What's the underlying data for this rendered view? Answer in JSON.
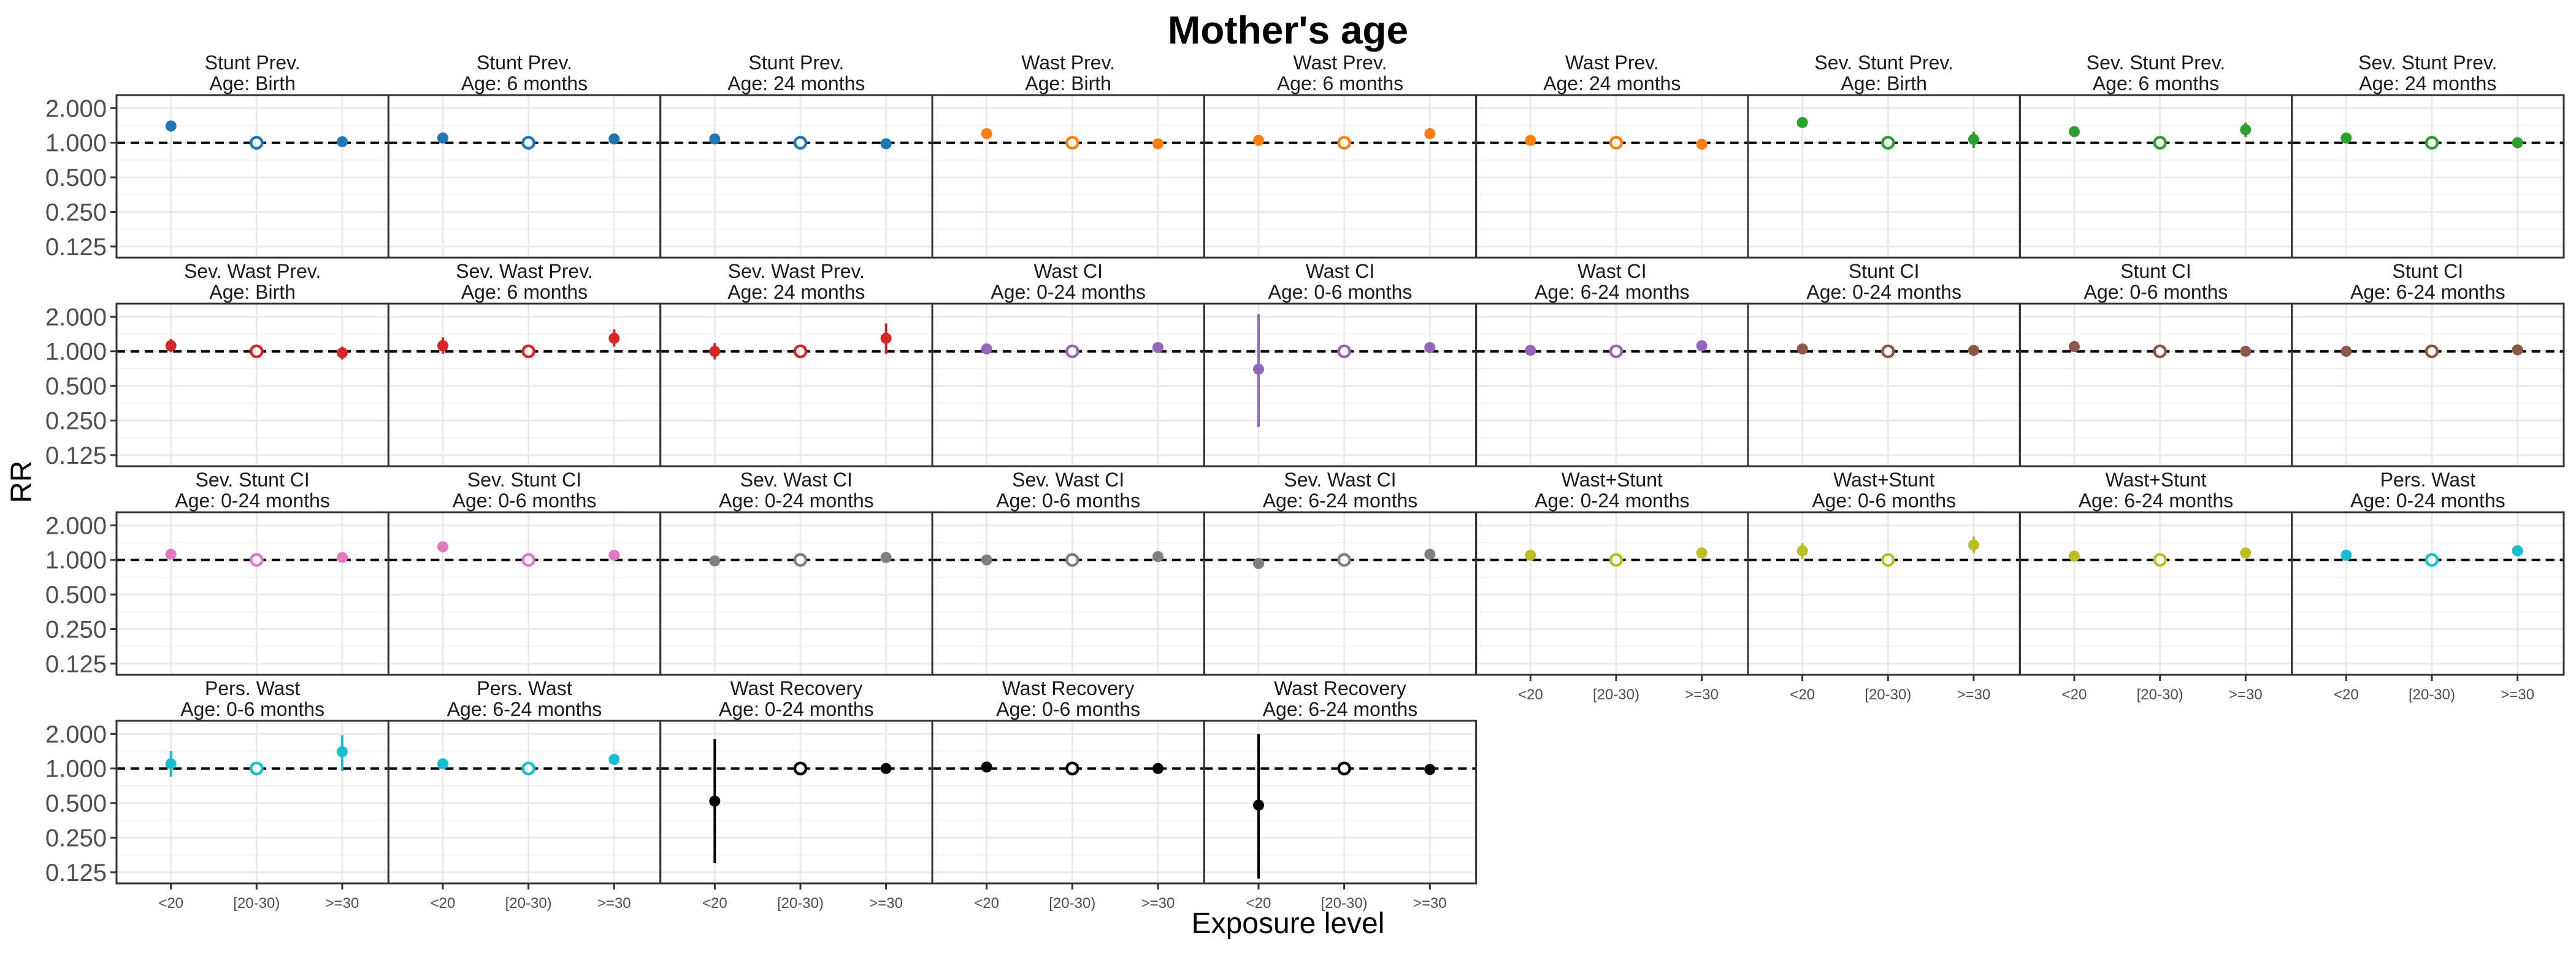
{
  "chart_data": {
    "type": "scatter",
    "title": "Mother's age",
    "xlabel": "Exposure level",
    "ylabel": "RR",
    "y_scale": "log2",
    "ylim": [
      0.1,
      2.6
    ],
    "yticks": [
      "2.000",
      "1.000",
      "0.500",
      "0.250",
      "0.125"
    ],
    "ytick_values": [
      2,
      1,
      0.5,
      0.25,
      0.125
    ],
    "categories": [
      "<20",
      "[20-30)",
      ">=30"
    ],
    "reference_level": "[20-30)",
    "reference_line": 1,
    "grid": true,
    "legend": "none",
    "panels": [
      {
        "title": [
          "Stunt Prev.",
          "Age: Birth"
        ],
        "color": "#1f77b4",
        "rr": [
          1.4,
          1,
          1.02
        ],
        "lo": [
          1.25,
          1,
          0.95
        ],
        "hi": [
          1.55,
          1,
          1.09
        ]
      },
      {
        "title": [
          "Stunt Prev.",
          "Age: 6 months"
        ],
        "color": "#1f77b4",
        "rr": [
          1.1,
          1,
          1.08
        ],
        "lo": [
          1.02,
          1,
          1.0
        ],
        "hi": [
          1.18,
          1,
          1.16
        ]
      },
      {
        "title": [
          "Stunt Prev.",
          "Age: 24 months"
        ],
        "color": "#1f77b4",
        "rr": [
          1.08,
          1,
          0.98
        ],
        "lo": [
          1.0,
          1,
          0.92
        ],
        "hi": [
          1.16,
          1,
          1.04
        ]
      },
      {
        "title": [
          "Wast Prev.",
          "Age: Birth"
        ],
        "color": "#ff7f0e",
        "rr": [
          1.2,
          1,
          0.98
        ],
        "lo": [
          1.1,
          1,
          0.9
        ],
        "hi": [
          1.3,
          1,
          1.06
        ]
      },
      {
        "title": [
          "Wast Prev.",
          "Age: 6 months"
        ],
        "color": "#ff7f0e",
        "rr": [
          1.05,
          1,
          1.2
        ],
        "lo": [
          0.95,
          1,
          1.1
        ],
        "hi": [
          1.15,
          1,
          1.3
        ]
      },
      {
        "title": [
          "Wast Prev.",
          "Age: 24 months"
        ],
        "color": "#ff7f0e",
        "rr": [
          1.05,
          1,
          0.97
        ],
        "lo": [
          0.95,
          1,
          0.88
        ],
        "hi": [
          1.15,
          1,
          1.08
        ]
      },
      {
        "title": [
          "Sev. Stunt Prev.",
          "Age: Birth"
        ],
        "color": "#2ca02c",
        "rr": [
          1.5,
          1,
          1.07
        ],
        "lo": [
          1.38,
          1,
          0.9
        ],
        "hi": [
          1.62,
          1,
          1.25
        ]
      },
      {
        "title": [
          "Sev. Stunt Prev.",
          "Age: 6 months"
        ],
        "color": "#2ca02c",
        "rr": [
          1.25,
          1,
          1.3
        ],
        "lo": [
          1.15,
          1,
          1.12
        ],
        "hi": [
          1.35,
          1,
          1.5
        ]
      },
      {
        "title": [
          "Sev. Stunt Prev.",
          "Age: 24 months"
        ],
        "color": "#2ca02c",
        "rr": [
          1.1,
          1,
          1.0
        ],
        "lo": [
          1.02,
          1,
          0.93
        ],
        "hi": [
          1.18,
          1,
          1.08
        ]
      },
      {
        "title": [
          "Sev. Wast Prev.",
          "Age: Birth"
        ],
        "color": "#d62728",
        "rr": [
          1.12,
          1,
          0.97
        ],
        "lo": [
          0.98,
          1,
          0.85
        ],
        "hi": [
          1.28,
          1,
          1.1
        ]
      },
      {
        "title": [
          "Sev. Wast Prev.",
          "Age: 6 months"
        ],
        "color": "#d62728",
        "rr": [
          1.12,
          1,
          1.3
        ],
        "lo": [
          0.95,
          1,
          1.1
        ],
        "hi": [
          1.32,
          1,
          1.55
        ]
      },
      {
        "title": [
          "Sev. Wast Prev.",
          "Age: 24 months"
        ],
        "color": "#d62728",
        "rr": [
          1.0,
          1,
          1.3
        ],
        "lo": [
          0.85,
          1,
          0.95
        ],
        "hi": [
          1.18,
          1,
          1.75
        ]
      },
      {
        "title": [
          "Wast CI",
          "Age: 0-24 months"
        ],
        "color": "#9467bd",
        "rr": [
          1.05,
          1,
          1.08
        ],
        "lo": [
          0.98,
          1,
          1.0
        ],
        "hi": [
          1.12,
          1,
          1.16
        ]
      },
      {
        "title": [
          "Wast CI",
          "Age: 0-6 months"
        ],
        "color": "#9467bd",
        "rr": [
          0.7,
          1,
          1.08
        ],
        "lo": [
          0.22,
          1,
          1.0
        ],
        "hi": [
          2.1,
          1,
          1.16
        ]
      },
      {
        "title": [
          "Wast CI",
          "Age: 6-24 months"
        ],
        "color": "#9467bd",
        "rr": [
          1.02,
          1,
          1.12
        ],
        "lo": [
          0.95,
          1,
          1.04
        ],
        "hi": [
          1.1,
          1,
          1.2
        ]
      },
      {
        "title": [
          "Stunt CI",
          "Age: 0-24 months"
        ],
        "color": "#8c564b",
        "rr": [
          1.05,
          1,
          1.02
        ],
        "lo": [
          0.98,
          1,
          0.96
        ],
        "hi": [
          1.12,
          1,
          1.08
        ]
      },
      {
        "title": [
          "Stunt CI",
          "Age: 0-6 months"
        ],
        "color": "#8c564b",
        "rr": [
          1.1,
          1,
          1.0
        ],
        "lo": [
          1.02,
          1,
          0.94
        ],
        "hi": [
          1.18,
          1,
          1.06
        ]
      },
      {
        "title": [
          "Stunt CI",
          "Age: 6-24 months"
        ],
        "color": "#8c564b",
        "rr": [
          1.0,
          1,
          1.03
        ],
        "lo": [
          0.94,
          1,
          0.97
        ],
        "hi": [
          1.06,
          1,
          1.09
        ]
      },
      {
        "title": [
          "Sev. Stunt CI",
          "Age: 0-24 months"
        ],
        "color": "#e377c2",
        "rr": [
          1.12,
          1,
          1.05
        ],
        "lo": [
          1.04,
          1,
          0.97
        ],
        "hi": [
          1.2,
          1,
          1.13
        ]
      },
      {
        "title": [
          "Sev. Stunt CI",
          "Age: 0-6 months"
        ],
        "color": "#e377c2",
        "rr": [
          1.3,
          1,
          1.1
        ],
        "lo": [
          1.18,
          1,
          1.0
        ],
        "hi": [
          1.42,
          1,
          1.2
        ]
      },
      {
        "title": [
          "Sev. Wast CI",
          "Age: 0-24 months"
        ],
        "color": "#7f7f7f",
        "rr": [
          0.98,
          1,
          1.05
        ],
        "lo": [
          0.92,
          1,
          0.98
        ],
        "hi": [
          1.04,
          1,
          1.12
        ]
      },
      {
        "title": [
          "Sev. Wast CI",
          "Age: 0-6 months"
        ],
        "color": "#7f7f7f",
        "rr": [
          1.0,
          1,
          1.07
        ],
        "lo": [
          0.94,
          1,
          1.0
        ],
        "hi": [
          1.06,
          1,
          1.14
        ]
      },
      {
        "title": [
          "Sev. Wast CI",
          "Age: 6-24 months"
        ],
        "color": "#7f7f7f",
        "rr": [
          0.93,
          1,
          1.12
        ],
        "lo": [
          0.85,
          1,
          1.03
        ],
        "hi": [
          1.02,
          1,
          1.22
        ]
      },
      {
        "title": [
          "Wast+Stunt",
          "Age: 0-24 months"
        ],
        "color": "#bcbd22",
        "rr": [
          1.1,
          1,
          1.15
        ],
        "lo": [
          1.02,
          1,
          1.05
        ],
        "hi": [
          1.18,
          1,
          1.25
        ]
      },
      {
        "title": [
          "Wast+Stunt",
          "Age: 0-6 months"
        ],
        "color": "#bcbd22",
        "rr": [
          1.2,
          1,
          1.35
        ],
        "lo": [
          1.02,
          1,
          1.15
        ],
        "hi": [
          1.4,
          1,
          1.6
        ]
      },
      {
        "title": [
          "Wast+Stunt",
          "Age: 6-24 months"
        ],
        "color": "#bcbd22",
        "rr": [
          1.08,
          1,
          1.15
        ],
        "lo": [
          1.0,
          1,
          1.06
        ],
        "hi": [
          1.16,
          1,
          1.24
        ]
      },
      {
        "title": [
          "Pers. Wast",
          "Age: 0-24 months"
        ],
        "color": "#17becf",
        "rr": [
          1.1,
          1,
          1.2
        ],
        "lo": [
          1.02,
          1,
          1.08
        ],
        "hi": [
          1.18,
          1,
          1.32
        ]
      },
      {
        "title": [
          "Pers. Wast",
          "Age: 0-6 months"
        ],
        "color": "#17becf",
        "rr": [
          1.1,
          1,
          1.4
        ],
        "lo": [
          0.85,
          1,
          0.95
        ],
        "hi": [
          1.42,
          1,
          1.95
        ]
      },
      {
        "title": [
          "Pers. Wast",
          "Age: 6-24 months"
        ],
        "color": "#17becf",
        "rr": [
          1.1,
          1,
          1.2
        ],
        "lo": [
          1.02,
          1,
          1.08
        ],
        "hi": [
          1.18,
          1,
          1.32
        ]
      },
      {
        "title": [
          "Wast Recovery",
          "Age: 0-24 months"
        ],
        "color": "#000000",
        "rr": [
          0.52,
          1,
          1.0
        ],
        "lo": [
          0.15,
          1,
          0.97
        ],
        "hi": [
          1.8,
          1,
          1.03
        ]
      },
      {
        "title": [
          "Wast Recovery",
          "Age: 0-6 months"
        ],
        "color": "#000000",
        "rr": [
          1.03,
          1,
          1.0
        ],
        "lo": [
          1.0,
          1,
          0.97
        ],
        "hi": [
          1.06,
          1,
          1.03
        ]
      },
      {
        "title": [
          "Wast Recovery",
          "Age: 6-24 months"
        ],
        "color": "#000000",
        "rr": [
          0.48,
          1,
          0.98
        ],
        "lo": [
          0.11,
          1,
          0.95
        ],
        "hi": [
          2.0,
          1,
          1.01
        ]
      }
    ]
  }
}
